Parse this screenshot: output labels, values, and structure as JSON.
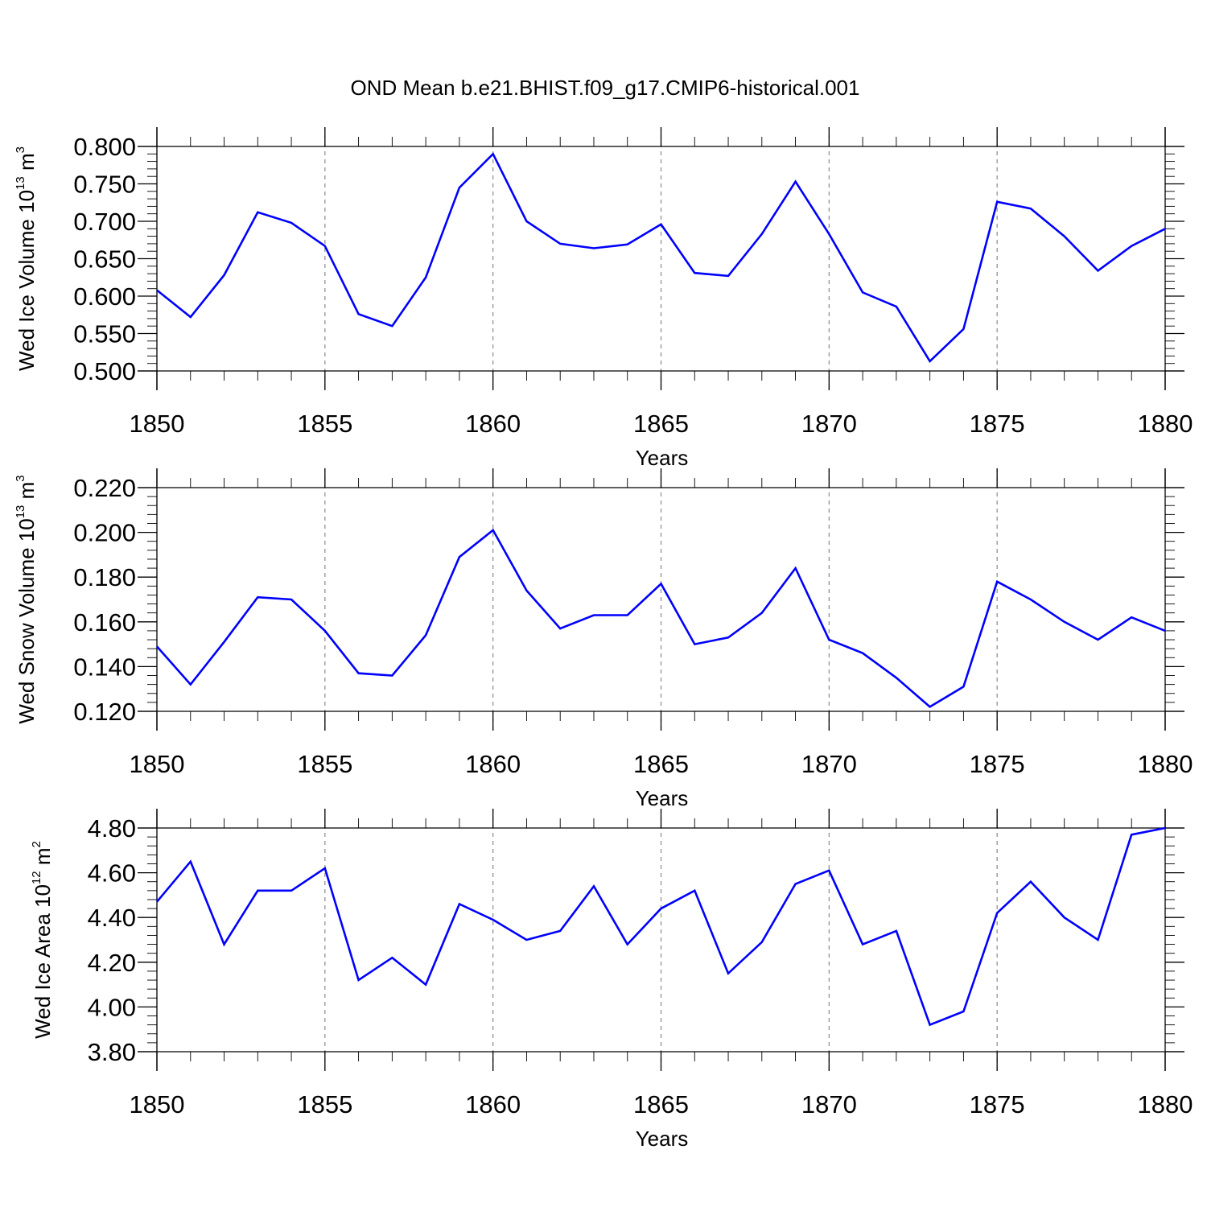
{
  "figure": {
    "title": "OND Mean b.e21.BHIST.f09_g17.CMIP6-historical.001"
  },
  "chart_data": [
    {
      "type": "line",
      "ylabel": {
        "base": "Wed Ice Volume 10",
        "exponent": "13",
        "unit": " m",
        "unit_exponent": "3"
      },
      "xlabel": "Years",
      "xlim": [
        1850,
        1880
      ],
      "ylim": [
        0.5,
        0.8
      ],
      "ytick_step": 0.05,
      "ytick_decimals": 3,
      "grid": "vertical-dashed",
      "x": [
        1850,
        1851,
        1852,
        1853,
        1854,
        1855,
        1856,
        1857,
        1858,
        1859,
        1860,
        1861,
        1862,
        1863,
        1864,
        1865,
        1866,
        1867,
        1868,
        1869,
        1870,
        1871,
        1872,
        1873,
        1874,
        1875,
        1876,
        1877,
        1878,
        1879,
        1880
      ],
      "series": [
        {
          "color": "#0000ff",
          "values": [
            0.608,
            0.572,
            0.628,
            0.712,
            0.698,
            0.667,
            0.576,
            0.56,
            0.625,
            0.745,
            0.79,
            0.7,
            0.67,
            0.664,
            0.669,
            0.696,
            0.631,
            0.627,
            0.683,
            0.753,
            0.683,
            0.605,
            0.586,
            0.513,
            0.556,
            0.726,
            0.717,
            0.68,
            0.634,
            0.667,
            0.69
          ]
        }
      ]
    },
    {
      "type": "line",
      "ylabel": {
        "base": "Wed Snow Volume 10",
        "exponent": "13",
        "unit": " m",
        "unit_exponent": "3"
      },
      "xlabel": "Years",
      "xlim": [
        1850,
        1880
      ],
      "ylim": [
        0.12,
        0.22
      ],
      "ytick_step": 0.02,
      "ytick_decimals": 3,
      "grid": "vertical-dashed",
      "x": [
        1850,
        1851,
        1852,
        1853,
        1854,
        1855,
        1856,
        1857,
        1858,
        1859,
        1860,
        1861,
        1862,
        1863,
        1864,
        1865,
        1866,
        1867,
        1868,
        1869,
        1870,
        1871,
        1872,
        1873,
        1874,
        1875,
        1876,
        1877,
        1878,
        1879,
        1880
      ],
      "series": [
        {
          "color": "#0000ff",
          "values": [
            0.149,
            0.132,
            0.151,
            0.171,
            0.17,
            0.156,
            0.137,
            0.136,
            0.154,
            0.189,
            0.201,
            0.174,
            0.157,
            0.163,
            0.163,
            0.177,
            0.15,
            0.153,
            0.164,
            0.184,
            0.152,
            0.146,
            0.135,
            0.122,
            0.131,
            0.178,
            0.17,
            0.16,
            0.152,
            0.162,
            0.156
          ]
        }
      ]
    },
    {
      "type": "line",
      "ylabel": {
        "base": "Wed Ice Area 10",
        "exponent": "12",
        "unit": " m",
        "unit_exponent": "2"
      },
      "xlabel": "Years",
      "xlim": [
        1850,
        1880
      ],
      "ylim": [
        3.8,
        4.8
      ],
      "ytick_step": 0.2,
      "ytick_decimals": 2,
      "grid": "vertical-dashed",
      "x": [
        1850,
        1851,
        1852,
        1853,
        1854,
        1855,
        1856,
        1857,
        1858,
        1859,
        1860,
        1861,
        1862,
        1863,
        1864,
        1865,
        1866,
        1867,
        1868,
        1869,
        1870,
        1871,
        1872,
        1873,
        1874,
        1875,
        1876,
        1877,
        1878,
        1879,
        1880
      ],
      "series": [
        {
          "color": "#0000ff",
          "values": [
            4.47,
            4.65,
            4.28,
            4.52,
            4.52,
            4.62,
            4.12,
            4.22,
            4.1,
            4.46,
            4.39,
            4.3,
            4.34,
            4.54,
            4.28,
            4.44,
            4.52,
            4.15,
            4.29,
            4.55,
            4.61,
            4.28,
            4.34,
            3.92,
            3.98,
            4.42,
            4.56,
            4.4,
            4.3,
            4.77,
            4.8
          ]
        }
      ]
    }
  ]
}
